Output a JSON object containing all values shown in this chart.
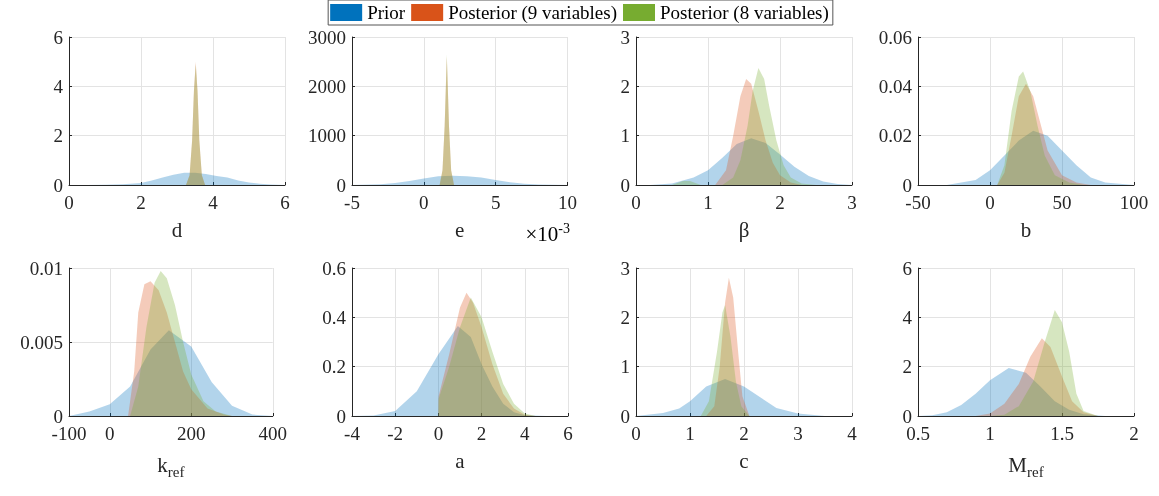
{
  "chart_data": [
    {
      "type": "area",
      "xlabel": "d",
      "xlim": [
        0,
        6
      ],
      "xticks": [
        0,
        2,
        4,
        6
      ],
      "ylim": [
        0,
        6
      ],
      "yticks": [
        0,
        2,
        4,
        6
      ],
      "grid": true,
      "legend": "top",
      "series": [
        {
          "name": "Prior",
          "color": "#0072bd",
          "x": [
            0.5,
            1,
            1.5,
            2,
            2.3,
            2.6,
            2.9,
            3.2,
            3.5,
            3.8,
            4.1,
            4.4,
            4.7,
            5,
            5.3,
            5.6,
            6
          ],
          "values": [
            0,
            0.01,
            0.03,
            0.08,
            0.18,
            0.3,
            0.42,
            0.5,
            0.5,
            0.45,
            0.36,
            0.3,
            0.18,
            0.1,
            0.05,
            0.02,
            0
          ]
        },
        {
          "name": "Posterior (9 variables)",
          "color": "#d95319",
          "x": [
            3.25,
            3.35,
            3.42,
            3.47,
            3.52,
            3.57,
            3.62,
            3.69,
            3.78
          ],
          "values": [
            0,
            0.4,
            1.8,
            3.8,
            5,
            3.8,
            1.8,
            0.4,
            0
          ]
        },
        {
          "name": "Posterior (8 variables)",
          "color": "#77ac30",
          "x": [
            3.25,
            3.35,
            3.42,
            3.47,
            3.52,
            3.57,
            3.62,
            3.69,
            3.78
          ],
          "values": [
            0,
            0.4,
            1.8,
            3.8,
            4.9,
            3.8,
            1.8,
            0.4,
            0
          ]
        }
      ]
    },
    {
      "type": "area",
      "xlabel": "e",
      "annotations": [
        "×10$^{-3}$"
      ],
      "xlim": [
        -5,
        10
      ],
      "xticks": [
        -5,
        0,
        5,
        10
      ],
      "ylim": [
        0,
        3000
      ],
      "yticks": [
        0,
        1000,
        2000,
        3000
      ],
      "grid": true,
      "series": [
        {
          "color": "#0072bd",
          "x": [
            -5,
            -3,
            -2,
            -1,
            0,
            1,
            2,
            3,
            4,
            5,
            6,
            7,
            8,
            10
          ],
          "values": [
            0,
            15,
            40,
            80,
            130,
            175,
            190,
            175,
            150,
            100,
            55,
            25,
            10,
            0
          ]
        },
        {
          "color": "#d95319",
          "x": [
            1.1,
            1.3,
            1.45,
            1.6,
            1.75,
            1.9,
            2.1
          ],
          "values": [
            0,
            300,
            1200,
            2600,
            1200,
            300,
            0
          ]
        },
        {
          "color": "#77ac30",
          "x": [
            1.1,
            1.3,
            1.45,
            1.6,
            1.75,
            1.9,
            2.1
          ],
          "values": [
            0,
            300,
            1200,
            2650,
            1200,
            300,
            0
          ]
        }
      ]
    },
    {
      "type": "area",
      "xlabel": "β",
      "xlim": [
        0,
        3
      ],
      "xticks": [
        0,
        1,
        2,
        3
      ],
      "ylim": [
        0,
        3
      ],
      "yticks": [
        0,
        1,
        2,
        3
      ],
      "grid": true,
      "series": [
        {
          "color": "#0072bd",
          "x": [
            0.2,
            0.5,
            0.8,
            1,
            1.2,
            1.4,
            1.6,
            1.8,
            2,
            2.2,
            2.4,
            2.6,
            2.8,
            3
          ],
          "values": [
            0,
            0.03,
            0.15,
            0.3,
            0.55,
            0.83,
            0.95,
            0.85,
            0.62,
            0.37,
            0.18,
            0.07,
            0.02,
            0
          ]
        },
        {
          "color": "#d95319",
          "x": [
            1.1,
            1.25,
            1.35,
            1.45,
            1.53,
            1.6,
            1.7,
            1.8,
            1.9,
            2,
            2.15,
            2.3
          ],
          "values": [
            0,
            0.3,
            1,
            1.8,
            2.15,
            2.05,
            1.5,
            0.9,
            0.45,
            0.2,
            0.05,
            0
          ]
        },
        {
          "color": "#77ac30",
          "x": [
            0.5,
            0.65,
            0.75,
            0.9,
            1.2,
            1.35,
            1.45,
            1.55,
            1.62,
            1.7,
            1.78,
            1.85,
            1.95,
            2.05,
            2.15,
            2.3,
            2.5
          ],
          "values": [
            0,
            0.08,
            0.08,
            0,
            0,
            0.15,
            0.5,
            1.2,
            1.9,
            2.37,
            2.15,
            1.6,
            0.9,
            0.4,
            0.15,
            0.03,
            0
          ]
        }
      ]
    },
    {
      "type": "area",
      "xlabel": "b",
      "xlim": [
        -50,
        100
      ],
      "xticks": [
        -50,
        0,
        50,
        100
      ],
      "ylim": [
        0,
        0.06
      ],
      "yticks": [
        0,
        0.02,
        0.04,
        0.06
      ],
      "grid": true,
      "series": [
        {
          "color": "#0072bd",
          "x": [
            -30,
            -10,
            0,
            10,
            20,
            30,
            40,
            50,
            60,
            70,
            80,
            100
          ],
          "values": [
            0,
            0.002,
            0.006,
            0.012,
            0.018,
            0.022,
            0.02,
            0.014,
            0.008,
            0.003,
            0.001,
            0
          ]
        },
        {
          "color": "#d95319",
          "x": [
            5,
            10,
            15,
            20,
            25,
            30,
            35,
            40,
            50,
            60,
            70
          ],
          "values": [
            0,
            0.005,
            0.02,
            0.036,
            0.041,
            0.036,
            0.025,
            0.014,
            0.004,
            0.001,
            0
          ]
        },
        {
          "color": "#77ac30",
          "x": [
            5,
            10,
            15,
            20,
            23,
            28,
            33,
            38,
            45,
            55,
            65
          ],
          "values": [
            0,
            0.008,
            0.03,
            0.044,
            0.046,
            0.038,
            0.024,
            0.012,
            0.004,
            0.001,
            0
          ]
        }
      ]
    },
    {
      "type": "area",
      "xlabel": "k$_{ref}$",
      "xlim": [
        -100,
        400
      ],
      "xticks": [
        -100,
        0,
        200,
        400
      ],
      "ylim": [
        0,
        0.01
      ],
      "yticks": [
        0,
        0.005,
        0.01
      ],
      "grid": true,
      "series": [
        {
          "color": "#0072bd",
          "x": [
            -100,
            -50,
            0,
            50,
            100,
            145,
            200,
            250,
            300,
            350,
            400
          ],
          "values": [
            0,
            0.0003,
            0.0008,
            0.002,
            0.0045,
            0.0058,
            0.0047,
            0.0023,
            0.0007,
            0.0001,
            0
          ]
        },
        {
          "color": "#d95319",
          "x": [
            45,
            60,
            70,
            85,
            100,
            120,
            140,
            160,
            180,
            200,
            240,
            280,
            300
          ],
          "values": [
            0,
            0.003,
            0.007,
            0.0089,
            0.0091,
            0.0085,
            0.007,
            0.005,
            0.003,
            0.0018,
            0.0005,
            0.0001,
            0
          ]
        },
        {
          "color": "#77ac30",
          "x": [
            50,
            70,
            90,
            110,
            125,
            140,
            160,
            180,
            200,
            230,
            260,
            300
          ],
          "values": [
            0,
            0.002,
            0.006,
            0.009,
            0.0098,
            0.0093,
            0.0075,
            0.005,
            0.0028,
            0.001,
            0.0003,
            0
          ]
        }
      ]
    },
    {
      "type": "area",
      "xlabel": "a",
      "xlim": [
        -4,
        6
      ],
      "xticks": [
        -4,
        -2,
        0,
        2,
        4,
        6
      ],
      "ylim": [
        0,
        0.6
      ],
      "yticks": [
        0,
        0.2,
        0.4,
        0.6
      ],
      "grid": true,
      "series": [
        {
          "color": "#0072bd",
          "x": [
            -4,
            -3,
            -2,
            -1,
            0,
            0.9,
            1.5,
            2,
            2.5,
            3,
            3.5,
            4,
            5
          ],
          "values": [
            0,
            0.002,
            0.02,
            0.1,
            0.25,
            0.365,
            0.32,
            0.21,
            0.12,
            0.05,
            0.015,
            0.003,
            0
          ]
        },
        {
          "color": "#d95319",
          "x": [
            0,
            0.01,
            0.5,
            1,
            1.3,
            1.6,
            2,
            2.5,
            3,
            3.5,
            4,
            4.5
          ],
          "values": [
            0,
            0.08,
            0.25,
            0.44,
            0.5,
            0.46,
            0.36,
            0.21,
            0.09,
            0.03,
            0.005,
            0
          ]
        },
        {
          "color": "#77ac30",
          "x": [
            0,
            0.01,
            0.5,
            1,
            1.5,
            2,
            2.5,
            3,
            3.5,
            4,
            4.5
          ],
          "values": [
            0,
            0.07,
            0.2,
            0.36,
            0.48,
            0.4,
            0.26,
            0.13,
            0.05,
            0.01,
            0
          ]
        }
      ]
    },
    {
      "type": "area",
      "xlabel": "c",
      "xlim": [
        0,
        4
      ],
      "xticks": [
        0,
        1,
        2,
        3,
        4
      ],
      "ylim": [
        0,
        3
      ],
      "yticks": [
        0,
        1,
        2,
        3
      ],
      "grid": true,
      "series": [
        {
          "color": "#0072bd",
          "x": [
            0,
            0.5,
            0.8,
            1,
            1.3,
            1.65,
            2,
            2.3,
            2.6,
            3,
            3.5,
            4
          ],
          "values": [
            0,
            0.06,
            0.15,
            0.3,
            0.6,
            0.75,
            0.6,
            0.38,
            0.16,
            0.05,
            0,
            0
          ]
        },
        {
          "color": "#d95319",
          "x": [
            1.3,
            1.45,
            1.55,
            1.65,
            1.72,
            1.8,
            1.9,
            1.97,
            2.1
          ],
          "values": [
            0,
            0.2,
            1,
            2.3,
            2.8,
            2.4,
            1.2,
            0.4,
            0
          ]
        },
        {
          "color": "#77ac30",
          "x": [
            1.2,
            1.35,
            1.5,
            1.6,
            1.65,
            1.75,
            1.85,
            1.95,
            2.1
          ],
          "values": [
            0,
            0.3,
            1.3,
            2.1,
            2.25,
            1.6,
            0.7,
            0.2,
            0
          ]
        }
      ]
    },
    {
      "type": "area",
      "xlabel": "M$_{ref}$",
      "xlim": [
        0.5,
        2
      ],
      "xticks": [
        0.5,
        1,
        1.5,
        2
      ],
      "ylim": [
        0,
        6
      ],
      "yticks": [
        0,
        2,
        4,
        6
      ],
      "grid": true,
      "series": [
        {
          "color": "#0072bd",
          "x": [
            0.5,
            0.6,
            0.7,
            0.8,
            0.9,
            1,
            1.13,
            1.25,
            1.35,
            1.45,
            1.55,
            1.65,
            1.8,
            2
          ],
          "values": [
            0,
            0.03,
            0.15,
            0.45,
            0.9,
            1.45,
            1.95,
            1.75,
            1.2,
            0.6,
            0.25,
            0.07,
            0,
            0
          ]
        },
        {
          "color": "#d95319",
          "x": [
            0.9,
            1,
            1.1,
            1.2,
            1.28,
            1.36,
            1.42,
            1.5,
            1.57,
            1.65,
            1.75
          ],
          "values": [
            0,
            0.1,
            0.5,
            1.3,
            2.4,
            3.15,
            2.8,
            1.6,
            0.6,
            0.15,
            0
          ]
        },
        {
          "color": "#77ac30",
          "x": [
            1,
            1.1,
            1.2,
            1.3,
            1.38,
            1.45,
            1.5,
            1.55,
            1.6,
            1.65,
            1.75
          ],
          "values": [
            0,
            0.05,
            0.4,
            1.4,
            3,
            4.3,
            3.8,
            2.6,
            0.9,
            0.2,
            0
          ]
        }
      ]
    }
  ]
}
